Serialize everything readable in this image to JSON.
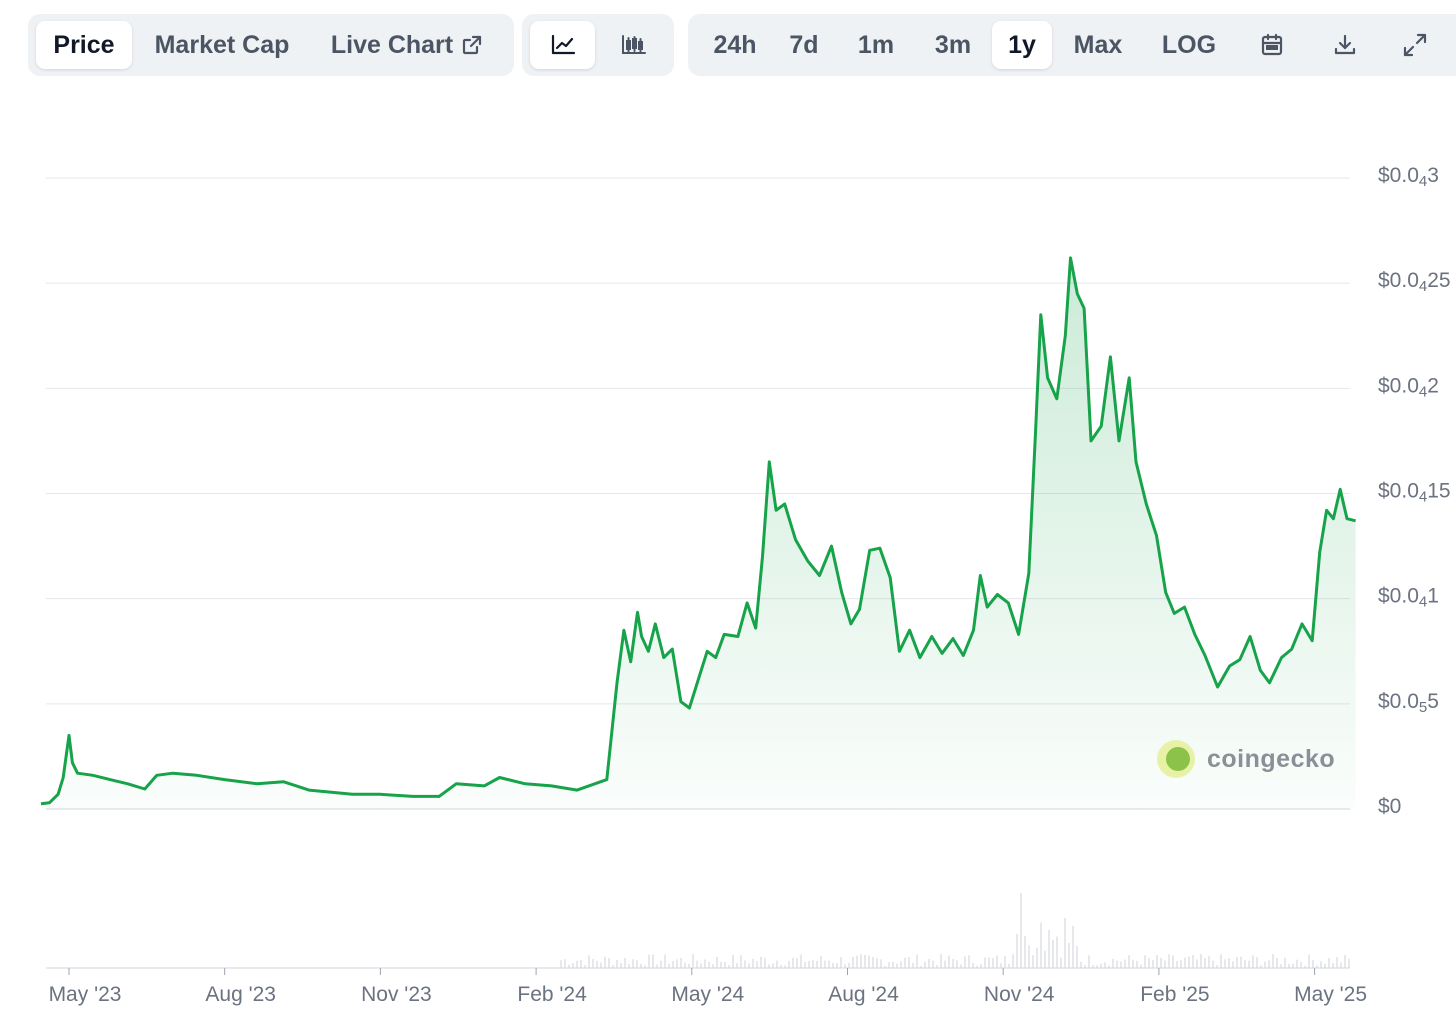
{
  "toolbar": {
    "tabs": [
      {
        "label": "Price",
        "active": true
      },
      {
        "label": "Market Cap",
        "active": false
      },
      {
        "label": "Live Chart",
        "active": false
      }
    ],
    "chart_type": [
      {
        "icon": "line-chart-icon",
        "active": true
      },
      {
        "icon": "candlestick-chart-icon",
        "active": false
      }
    ],
    "ranges": [
      {
        "label": "24h",
        "active": false
      },
      {
        "label": "7d",
        "active": false
      },
      {
        "label": "1m",
        "active": false
      },
      {
        "label": "3m",
        "active": false
      },
      {
        "label": "1y",
        "active": true
      },
      {
        "label": "Max",
        "active": false
      },
      {
        "label": "LOG",
        "active": false
      }
    ],
    "tools": [
      "calendar-icon",
      "download-icon",
      "expand-icon"
    ]
  },
  "watermark": "coingecko",
  "colors": {
    "line": "#16a34a",
    "grid": "#e5e7eb",
    "axis_text": "#6b7280",
    "volume": "#d1d5db"
  },
  "chart_data": {
    "type": "area",
    "title": "",
    "xlabel": "",
    "ylabel": "",
    "x_tick_labels": [
      "May '23",
      "Aug '23",
      "Nov '23",
      "Feb '24",
      "May '24",
      "Aug '24",
      "Nov '24",
      "Feb '25",
      "May '25"
    ],
    "y_ticks": [
      {
        "value": 0,
        "base": "$0",
        "sub": "",
        "tail": ""
      },
      {
        "value": 5e-06,
        "base": "$0.0",
        "sub": "5",
        "tail": "5"
      },
      {
        "value": 1e-05,
        "base": "$0.0",
        "sub": "4",
        "tail": "1"
      },
      {
        "value": 1.5e-05,
        "base": "$0.0",
        "sub": "4",
        "tail": "15"
      },
      {
        "value": 2e-05,
        "base": "$0.0",
        "sub": "4",
        "tail": "2"
      },
      {
        "value": 2.5e-05,
        "base": "$0.0",
        "sub": "4",
        "tail": "25"
      },
      {
        "value": 3e-05,
        "base": "$0.0",
        "sub": "4",
        "tail": "3"
      }
    ],
    "ylim": [
      0,
      3e-05
    ],
    "grid": true,
    "series": [
      {
        "points": [
          [
            "2023-04-15",
            2.5e-07
          ],
          [
            "2023-04-20",
            3e-07
          ],
          [
            "2023-04-25",
            7e-07
          ],
          [
            "2023-04-28",
            1.5e-06
          ],
          [
            "2023-05-01",
            3.5e-06
          ],
          [
            "2023-05-03",
            2.2e-06
          ],
          [
            "2023-05-06",
            1.7e-06
          ],
          [
            "2023-05-15",
            1.6e-06
          ],
          [
            "2023-05-25",
            1.4e-06
          ],
          [
            "2023-06-05",
            1.2e-06
          ],
          [
            "2023-06-15",
            9.5e-07
          ],
          [
            "2023-06-22",
            1.6e-06
          ],
          [
            "2023-07-01",
            1.7e-06
          ],
          [
            "2023-07-15",
            1.6e-06
          ],
          [
            "2023-08-01",
            1.4e-06
          ],
          [
            "2023-08-20",
            1.2e-06
          ],
          [
            "2023-09-05",
            1.3e-06
          ],
          [
            "2023-09-20",
            9e-07
          ],
          [
            "2023-10-15",
            7e-07
          ],
          [
            "2023-11-01",
            7e-07
          ],
          [
            "2023-11-20",
            6e-07
          ],
          [
            "2023-12-05",
            6e-07
          ],
          [
            "2023-12-15",
            1.2e-06
          ],
          [
            "2024-01-01",
            1.1e-06
          ],
          [
            "2024-01-10",
            1.5e-06
          ],
          [
            "2024-01-25",
            1.2e-06
          ],
          [
            "2024-02-10",
            1.1e-06
          ],
          [
            "2024-02-25",
            9e-07
          ],
          [
            "2024-03-05",
            1.2e-06
          ],
          [
            "2024-03-12",
            1.4e-06
          ],
          [
            "2024-03-18",
            6e-06
          ],
          [
            "2024-03-22",
            8.5e-06
          ],
          [
            "2024-03-26",
            7e-06
          ],
          [
            "2024-03-30",
            9.35e-06
          ],
          [
            "2024-04-02",
            8.2e-06
          ],
          [
            "2024-04-06",
            7.5e-06
          ],
          [
            "2024-04-10",
            8.8e-06
          ],
          [
            "2024-04-15",
            7.2e-06
          ],
          [
            "2024-04-20",
            7.6e-06
          ],
          [
            "2024-04-25",
            5.1e-06
          ],
          [
            "2024-04-30",
            4.8e-06
          ],
          [
            "2024-05-05",
            6.2e-06
          ],
          [
            "2024-05-10",
            7.5e-06
          ],
          [
            "2024-05-15",
            7.2e-06
          ],
          [
            "2024-05-20",
            8.3e-06
          ],
          [
            "2024-05-28",
            8.2e-06
          ],
          [
            "2024-06-03",
            9.8e-06
          ],
          [
            "2024-06-08",
            8.6e-06
          ],
          [
            "2024-06-12",
            1.2e-05
          ],
          [
            "2024-06-16",
            1.65e-05
          ],
          [
            "2024-06-20",
            1.42e-05
          ],
          [
            "2024-06-25",
            1.45e-05
          ],
          [
            "2024-07-01",
            1.28e-05
          ],
          [
            "2024-07-08",
            1.18e-05
          ],
          [
            "2024-07-15",
            1.11e-05
          ],
          [
            "2024-07-22",
            1.25e-05
          ],
          [
            "2024-07-28",
            1.03e-05
          ],
          [
            "2024-08-03",
            8.8e-06
          ],
          [
            "2024-08-08",
            9.5e-06
          ],
          [
            "2024-08-14",
            1.23e-05
          ],
          [
            "2024-08-20",
            1.24e-05
          ],
          [
            "2024-08-26",
            1.1e-05
          ],
          [
            "2024-09-01",
            7.5e-06
          ],
          [
            "2024-09-07",
            8.5e-06
          ],
          [
            "2024-09-13",
            7.2e-06
          ],
          [
            "2024-09-20",
            8.2e-06
          ],
          [
            "2024-09-26",
            7.4e-06
          ],
          [
            "2024-10-02",
            8.1e-06
          ],
          [
            "2024-10-08",
            7.3e-06
          ],
          [
            "2024-10-14",
            8.5e-06
          ],
          [
            "2024-10-18",
            1.11e-05
          ],
          [
            "2024-10-22",
            9.6e-06
          ],
          [
            "2024-10-28",
            1.02e-05
          ],
          [
            "2024-11-04",
            9.8e-06
          ],
          [
            "2024-11-10",
            8.3e-06
          ],
          [
            "2024-11-16",
            1.12e-05
          ],
          [
            "2024-11-20",
            1.8e-05
          ],
          [
            "2024-11-23",
            2.35e-05
          ],
          [
            "2024-11-27",
            2.05e-05
          ],
          [
            "2024-12-02",
            1.95e-05
          ],
          [
            "2024-12-07",
            2.25e-05
          ],
          [
            "2024-12-10",
            2.62e-05
          ],
          [
            "2024-12-14",
            2.45e-05
          ],
          [
            "2024-12-18",
            2.38e-05
          ],
          [
            "2024-12-22",
            1.75e-05
          ],
          [
            "2024-12-28",
            1.82e-05
          ],
          [
            "2025-01-03",
            2.15e-05
          ],
          [
            "2025-01-08",
            1.75e-05
          ],
          [
            "2025-01-14",
            2.05e-05
          ],
          [
            "2025-01-18",
            1.65e-05
          ],
          [
            "2025-01-24",
            1.45e-05
          ],
          [
            "2025-01-30",
            1.3e-05
          ],
          [
            "2025-02-05",
            1.03e-05
          ],
          [
            "2025-02-10",
            9.3e-06
          ],
          [
            "2025-02-16",
            9.6e-06
          ],
          [
            "2025-02-22",
            8.3e-06
          ],
          [
            "2025-02-28",
            7.3e-06
          ],
          [
            "2025-03-05",
            5.8e-06
          ],
          [
            "2025-03-12",
            6.8e-06
          ],
          [
            "2025-03-18",
            7.1e-06
          ],
          [
            "2025-03-24",
            8.2e-06
          ],
          [
            "2025-03-30",
            6.6e-06
          ],
          [
            "2025-04-05",
            6e-06
          ],
          [
            "2025-04-12",
            7.2e-06
          ],
          [
            "2025-04-18",
            7.6e-06
          ],
          [
            "2025-04-24",
            8.8e-06
          ],
          [
            "2025-04-30",
            8e-06
          ],
          [
            "2025-05-04",
            1.22e-05
          ],
          [
            "2025-05-08",
            1.42e-05
          ],
          [
            "2025-05-12",
            1.38e-05
          ],
          [
            "2025-05-16",
            1.52e-05
          ],
          [
            "2025-05-20",
            1.38e-05
          ],
          [
            "2025-05-25",
            1.37e-05
          ]
        ]
      }
    ]
  }
}
